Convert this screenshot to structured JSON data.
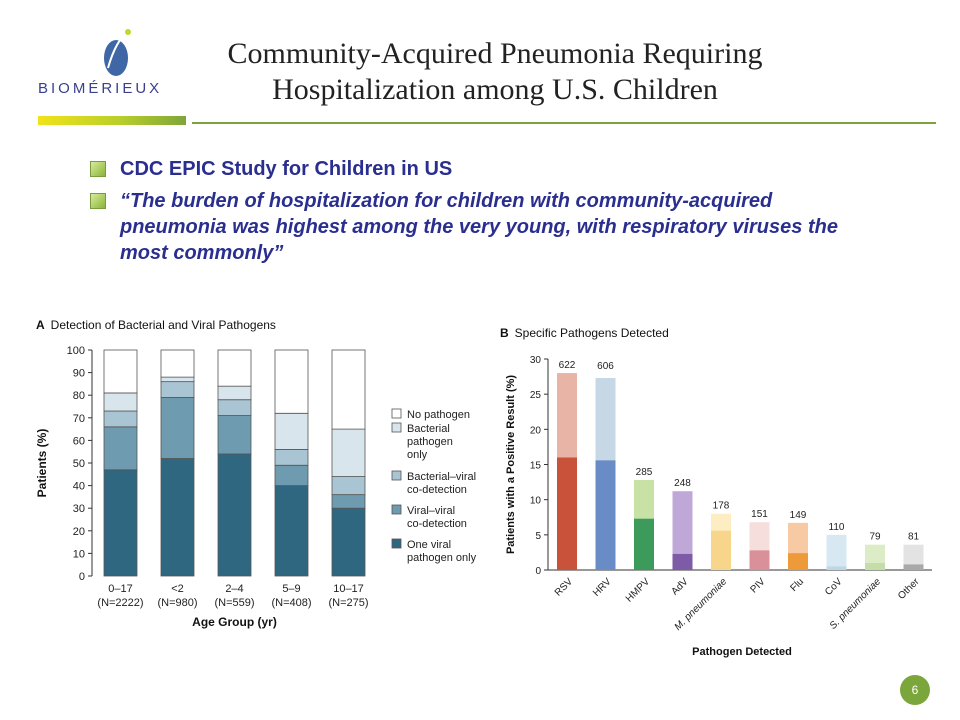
{
  "logo": {
    "wordmark": "BIOMÉRIEUX"
  },
  "title": {
    "line1": "Community-Acquired Pneumonia Requiring",
    "line2": "Hospitalization among U.S. Children"
  },
  "bullets": [
    {
      "text": "CDC EPIC Study for Children in US"
    },
    {
      "text": "“The burden of hospitalization for children with community-acquired pneumonia was highest among the very young, with respiratory viruses the most commonly”"
    }
  ],
  "page_number": "6",
  "colors": {
    "accent_green": "#7aa63b",
    "bullet_text": "#2a2f8f"
  },
  "chart_data": [
    {
      "type": "bar",
      "panel_letter": "A",
      "title": "Detection of Bacterial and Viral Pathogens",
      "xlabel": "Age Group (yr)",
      "ylabel": "Patients (%)",
      "ylim": [
        0,
        100
      ],
      "yticks": [
        0,
        10,
        20,
        30,
        40,
        50,
        60,
        70,
        80,
        90,
        100
      ],
      "stacked": true,
      "categories": [
        "0–17",
        "<2",
        "2–4",
        "5–9",
        "10–17"
      ],
      "category_sublabels": [
        "(N=2222)",
        "(N=980)",
        "(N=559)",
        "(N=408)",
        "(N=275)"
      ],
      "legend_position": "right",
      "series": [
        {
          "name": "One viral pathogen only",
          "color": "#2f6680",
          "values": [
            47,
            52,
            54,
            40,
            30
          ]
        },
        {
          "name": "Viral–viral co-detection",
          "color": "#6f9bb0",
          "values": [
            19,
            27,
            17,
            9,
            6
          ]
        },
        {
          "name": "Bacterial–viral co-detection",
          "color": "#a9c4d2",
          "values": [
            7,
            7,
            7,
            7,
            8
          ]
        },
        {
          "name": "Bacterial pathogen only",
          "color": "#d9e5ec",
          "values": [
            8,
            2,
            6,
            16,
            21
          ]
        },
        {
          "name": "No pathogen",
          "color": "#ffffff",
          "values": [
            19,
            12,
            16,
            28,
            35
          ]
        }
      ]
    },
    {
      "type": "bar",
      "panel_letter": "B",
      "title": "Specific Pathogens Detected",
      "xlabel": "Pathogen Detected",
      "ylabel": "Patients with a Positive Result (%)",
      "ylim": [
        0,
        30
      ],
      "yticks": [
        0,
        5,
        10,
        15,
        20,
        25,
        30
      ],
      "categories": [
        "RSV",
        "HRV",
        "HMPV",
        "AdV",
        "M. pneumoniae",
        "PIV",
        "Flu",
        "CoV",
        "S. pneumoniae",
        "Other"
      ],
      "italic_categories": [
        "M. pneumoniae",
        "S. pneumoniae"
      ],
      "counts": [
        "622",
        "606",
        "285",
        "248",
        "178",
        "151",
        "149",
        "110",
        "79",
        "81"
      ],
      "totals": [
        28,
        27.3,
        12.8,
        11.2,
        8,
        6.8,
        6.7,
        5,
        3.6,
        3.6
      ],
      "lower_segment": [
        16,
        15.6,
        7.3,
        2.3,
        5.6,
        2.8,
        2.4,
        0.5,
        1,
        0.8
      ],
      "colors_dark": [
        "#c9523a",
        "#6a8cc6",
        "#3c9a5b",
        "#7d5ba6",
        "#f7d58a",
        "#d99098",
        "#ec9a3a",
        "#bcd7e6",
        "#c5dea8",
        "#a9a9a9"
      ],
      "colors_light": [
        "#e8b4a6",
        "#c6d8e6",
        "#c8e2a6",
        "#bfa8d8",
        "#fcedc2",
        "#f6dedd",
        "#f8caa4",
        "#d7e8f2",
        "#dcecc6",
        "#e3e3e3"
      ]
    }
  ]
}
